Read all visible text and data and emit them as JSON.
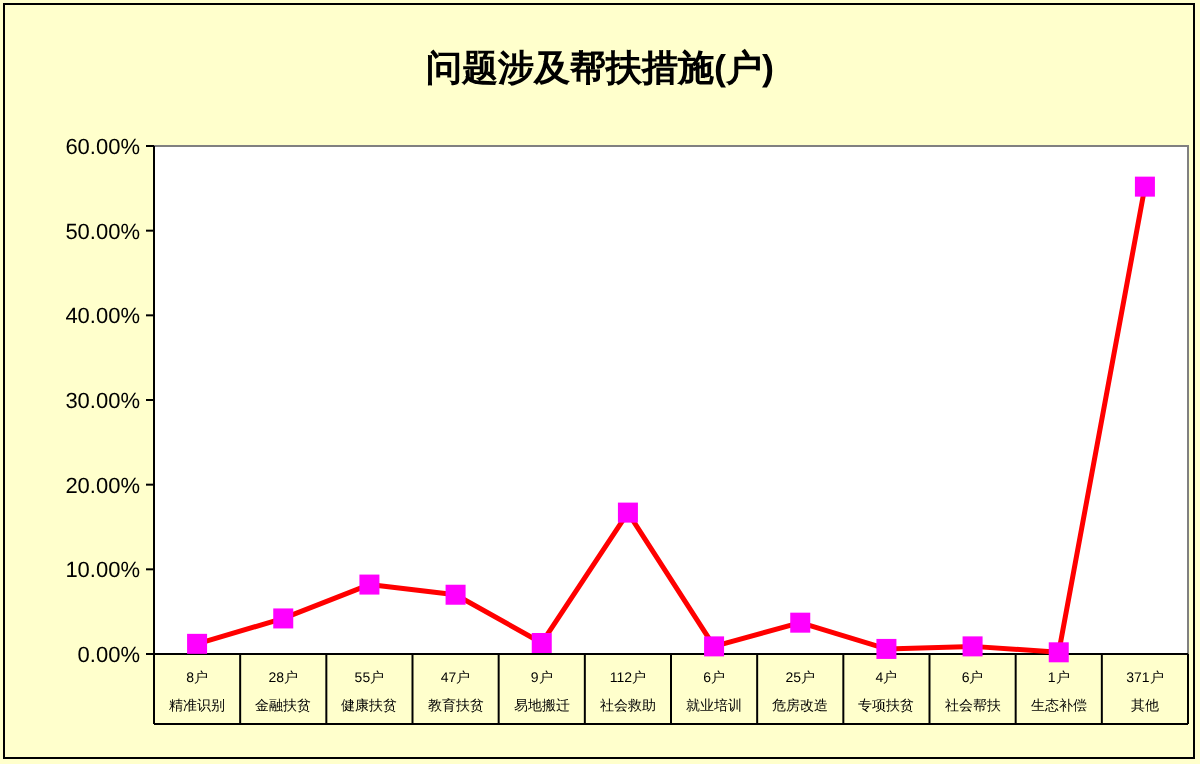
{
  "chart_data": {
    "type": "line",
    "title": "问题涉及帮扶措施(户)",
    "categories": [
      "8户精准识别",
      "28户金融扶贫",
      "55户健康扶贫",
      "47户教育扶贫",
      "9户易地搬迁",
      "112户社会救助",
      "6户就业培训",
      "25户危房改造",
      "4户专项扶贫",
      "6户社会帮扶",
      "1户生态补偿",
      "371户其他"
    ],
    "series": [
      {
        "color": "#ff0000",
        "colors": [
          "#ff00ff",
          "#ff00ff",
          "#ff00ff",
          "#ff00ff",
          "#ff00ff",
          "#ff00ff",
          "#ff00ff",
          "#ff00ff",
          "#ff00ff",
          "#ff00ff",
          "#ff00ff",
          "#ff00ff"
        ],
        "values": [
          1.2,
          4.2,
          8.2,
          7.0,
          1.3,
          16.7,
          0.9,
          3.7,
          0.6,
          0.9,
          0.2,
          55.2
        ]
      }
    ],
    "marker": "square",
    "ylim": [
      0,
      60
    ],
    "yticks": [
      {
        "value": 0,
        "label": "0.00%"
      },
      {
        "value": 10,
        "label": "10.00%"
      },
      {
        "value": 20,
        "label": "20.00%"
      },
      {
        "value": 30,
        "label": "30.00%"
      },
      {
        "value": 40,
        "label": "40.00%"
      },
      {
        "value": 50,
        "label": "50.00%"
      },
      {
        "value": 60,
        "label": "60.00%"
      }
    ]
  }
}
